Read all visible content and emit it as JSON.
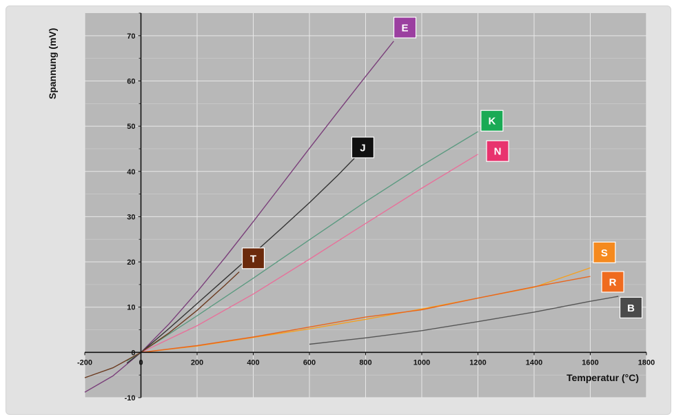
{
  "chart_data": {
    "type": "line",
    "title": "",
    "xlabel": "Temperatur (°C)",
    "ylabel": "Spannung (mV)",
    "xlim": [
      -200,
      1800
    ],
    "ylim": [
      -10,
      75
    ],
    "x_ticks": [
      -200,
      0,
      200,
      400,
      600,
      800,
      1000,
      1200,
      1400,
      1600,
      1800
    ],
    "y_ticks": [
      -10,
      0,
      10,
      20,
      30,
      40,
      50,
      60,
      70
    ],
    "grid": true,
    "series": [
      {
        "name": "E",
        "color": "#7a3f7a",
        "label_color": "#9b3fa0",
        "points": [
          [
            -200,
            -8.8
          ],
          [
            -100,
            -5.2
          ],
          [
            0,
            0
          ],
          [
            100,
            6.3
          ],
          [
            200,
            13.4
          ],
          [
            300,
            21.0
          ],
          [
            400,
            28.9
          ],
          [
            500,
            37.0
          ],
          [
            600,
            45.1
          ],
          [
            700,
            53.1
          ],
          [
            800,
            61.0
          ],
          [
            900,
            68.8
          ]
        ]
      },
      {
        "name": "J",
        "color": "#333333",
        "label_color": "#111111",
        "points": [
          [
            -50,
            -2.4
          ],
          [
            0,
            0
          ],
          [
            100,
            5.3
          ],
          [
            200,
            10.8
          ],
          [
            300,
            16.3
          ],
          [
            400,
            21.8
          ],
          [
            500,
            27.4
          ],
          [
            600,
            33.1
          ],
          [
            700,
            39.1
          ],
          [
            760,
            42.9
          ]
        ]
      },
      {
        "name": "K",
        "color": "#5b9a80",
        "label_color": "#1aaa55",
        "points": [
          [
            -50,
            -1.9
          ],
          [
            0,
            0
          ],
          [
            200,
            8.1
          ],
          [
            400,
            16.4
          ],
          [
            600,
            24.9
          ],
          [
            800,
            33.3
          ],
          [
            1000,
            41.3
          ],
          [
            1200,
            48.8
          ]
        ]
      },
      {
        "name": "N",
        "color": "#e8709a",
        "label_color": "#e8336e",
        "points": [
          [
            0,
            0
          ],
          [
            200,
            5.9
          ],
          [
            400,
            12.9
          ],
          [
            600,
            20.6
          ],
          [
            800,
            28.5
          ],
          [
            1000,
            36.3
          ],
          [
            1200,
            43.8
          ]
        ]
      },
      {
        "name": "T",
        "color": "#6b3a1f",
        "label_color": "#6b2a0c",
        "points": [
          [
            -200,
            -5.6
          ],
          [
            -100,
            -3.4
          ],
          [
            0,
            0
          ],
          [
            100,
            4.3
          ],
          [
            200,
            9.3
          ],
          [
            300,
            14.9
          ],
          [
            350,
            17.8
          ]
        ]
      },
      {
        "name": "S",
        "color": "#f5a020",
        "label_color": "#f58a1f",
        "points": [
          [
            0,
            0
          ],
          [
            200,
            1.4
          ],
          [
            400,
            3.3
          ],
          [
            600,
            5.2
          ],
          [
            800,
            7.3
          ],
          [
            1000,
            9.6
          ],
          [
            1200,
            12.0
          ],
          [
            1400,
            14.4
          ],
          [
            1600,
            18.7
          ]
        ]
      },
      {
        "name": "R",
        "color": "#e8661e",
        "label_color": "#ef6b1f",
        "points": [
          [
            0,
            0
          ],
          [
            200,
            1.5
          ],
          [
            400,
            3.4
          ],
          [
            600,
            5.6
          ],
          [
            800,
            7.8
          ],
          [
            1000,
            9.4
          ],
          [
            1200,
            12.0
          ],
          [
            1400,
            14.5
          ],
          [
            1600,
            16.8
          ]
        ]
      },
      {
        "name": "B",
        "color": "#555555",
        "label_color": "#4a4a4a",
        "points": [
          [
            600,
            1.8
          ],
          [
            800,
            3.2
          ],
          [
            1000,
            4.8
          ],
          [
            1200,
            6.8
          ],
          [
            1400,
            8.9
          ],
          [
            1600,
            11.3
          ],
          [
            1700,
            12.4
          ]
        ]
      }
    ],
    "labels": [
      {
        "series": "E",
        "x": 940,
        "y": 71.8
      },
      {
        "series": "J",
        "x": 790,
        "y": 45.3
      },
      {
        "series": "K",
        "x": 1250,
        "y": 51.2
      },
      {
        "series": "N",
        "x": 1270,
        "y": 44.5
      },
      {
        "series": "T",
        "x": 400,
        "y": 20.8
      },
      {
        "series": "S",
        "x": 1650,
        "y": 22.1
      },
      {
        "series": "R",
        "x": 1680,
        "y": 15.6
      },
      {
        "series": "B",
        "x": 1745,
        "y": 9.9
      }
    ]
  }
}
